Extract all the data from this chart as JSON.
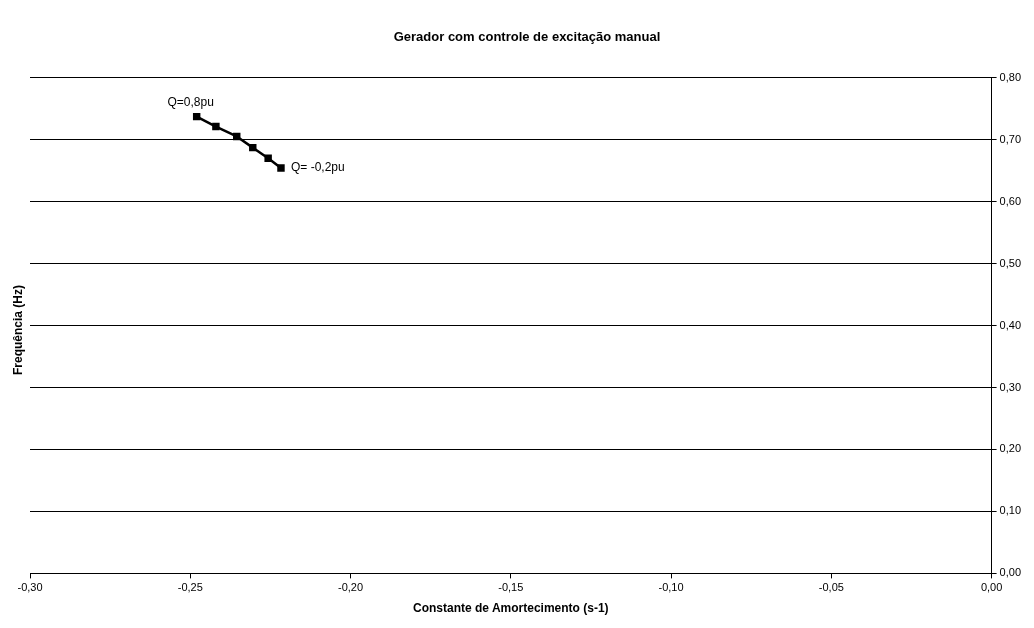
{
  "chart_data": {
    "type": "line",
    "title": "Gerador com controle de excitação manual",
    "xlabel": "Constante de Amortecimento (s-1)",
    "ylabel": "Frequência (Hz)",
    "x": [
      -0.248,
      -0.242,
      -0.2355,
      -0.2305,
      -0.2257,
      -0.2217
    ],
    "series": [
      {
        "color": "#000000",
        "values": [
          0.737,
          0.721,
          0.705,
          0.687,
          0.67,
          0.654
        ]
      }
    ],
    "xlim": [
      -0.3,
      0
    ],
    "xticks": [
      {
        "value": -0.3,
        "label": "-0,30"
      },
      {
        "value": -0.25,
        "label": "-0,25"
      },
      {
        "value": -0.2,
        "label": "-0,20"
      },
      {
        "value": -0.15,
        "label": "-0,15"
      },
      {
        "value": -0.1,
        "label": "-0,10"
      },
      {
        "value": -0.05,
        "label": "-0,05"
      },
      {
        "value": 0,
        "label": "0,00"
      }
    ],
    "ylim": [
      0,
      0.8
    ],
    "yticks": [
      {
        "value": 0,
        "label": "0,00"
      },
      {
        "value": 0.1,
        "label": "0,10"
      },
      {
        "value": 0.2,
        "label": "0,20"
      },
      {
        "value": 0.3,
        "label": "0,30"
      },
      {
        "value": 0.4,
        "label": "0,40"
      },
      {
        "value": 0.5,
        "label": "0,50"
      },
      {
        "value": 0.6,
        "label": "0,60"
      },
      {
        "value": 0.7,
        "label": "0,70"
      },
      {
        "value": 0.8,
        "label": "0,80"
      }
    ],
    "grid": "y",
    "legend": false,
    "marker": "square",
    "line_style": "solid",
    "annotations": [
      {
        "text": "Q=0,8pu",
        "x": -0.248,
        "y": 0.737
      },
      {
        "text": "Q= -0,2pu",
        "x": -0.2217,
        "y": 0.654
      }
    ]
  }
}
